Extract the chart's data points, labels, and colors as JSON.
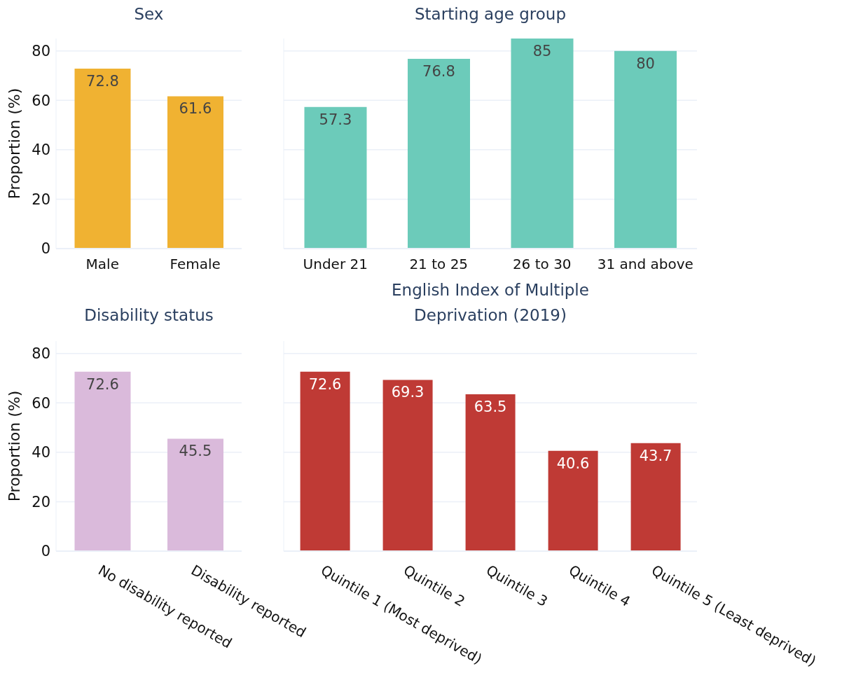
{
  "chart_data": [
    {
      "type": "bar",
      "title": "Sex",
      "ylabel": "Proportion (%)",
      "categories": [
        "Male",
        "Female"
      ],
      "values": [
        72.8,
        61.6
      ],
      "color": "#f0b232",
      "ylim": [
        0,
        85
      ],
      "yticks": [
        0,
        20,
        40,
        60,
        80
      ],
      "grid": "y",
      "data_labels": true
    },
    {
      "type": "bar",
      "title": "Starting age group",
      "categories": [
        "Under 21",
        "21 to 25",
        "26 to 30",
        "31 and above"
      ],
      "values": [
        57.3,
        76.8,
        85,
        80
      ],
      "color": "#6ccbba",
      "ylim": [
        0,
        85
      ],
      "yticks": [
        0,
        20,
        40,
        60,
        80
      ],
      "grid": "y",
      "data_labels": true,
      "tick_labels": "x"
    },
    {
      "type": "bar",
      "title": "Disability status",
      "ylabel": "Proportion (%)",
      "categories": [
        "No disability reported",
        "Disability reported"
      ],
      "values": [
        72.6,
        45.5
      ],
      "color": "#dabadb",
      "ylim": [
        0,
        85
      ],
      "yticks": [
        0,
        20,
        40,
        60,
        80
      ],
      "grid": "y",
      "data_labels": true
    },
    {
      "type": "bar",
      "title": "English Index of Multiple Deprivation (2019)",
      "categories": [
        "Quintile 1 (Most deprived)",
        "Quintile 2",
        "Quintile 3",
        "Quintile 4",
        "Quintile 5 (Least deprived)"
      ],
      "values": [
        72.6,
        69.3,
        63.5,
        40.6,
        43.7
      ],
      "color": "#bf3a35",
      "ylim": [
        0,
        85
      ],
      "yticks": [
        0,
        20,
        40,
        60,
        80
      ],
      "grid": "y",
      "data_labels": true,
      "tick_labels": "x"
    }
  ]
}
